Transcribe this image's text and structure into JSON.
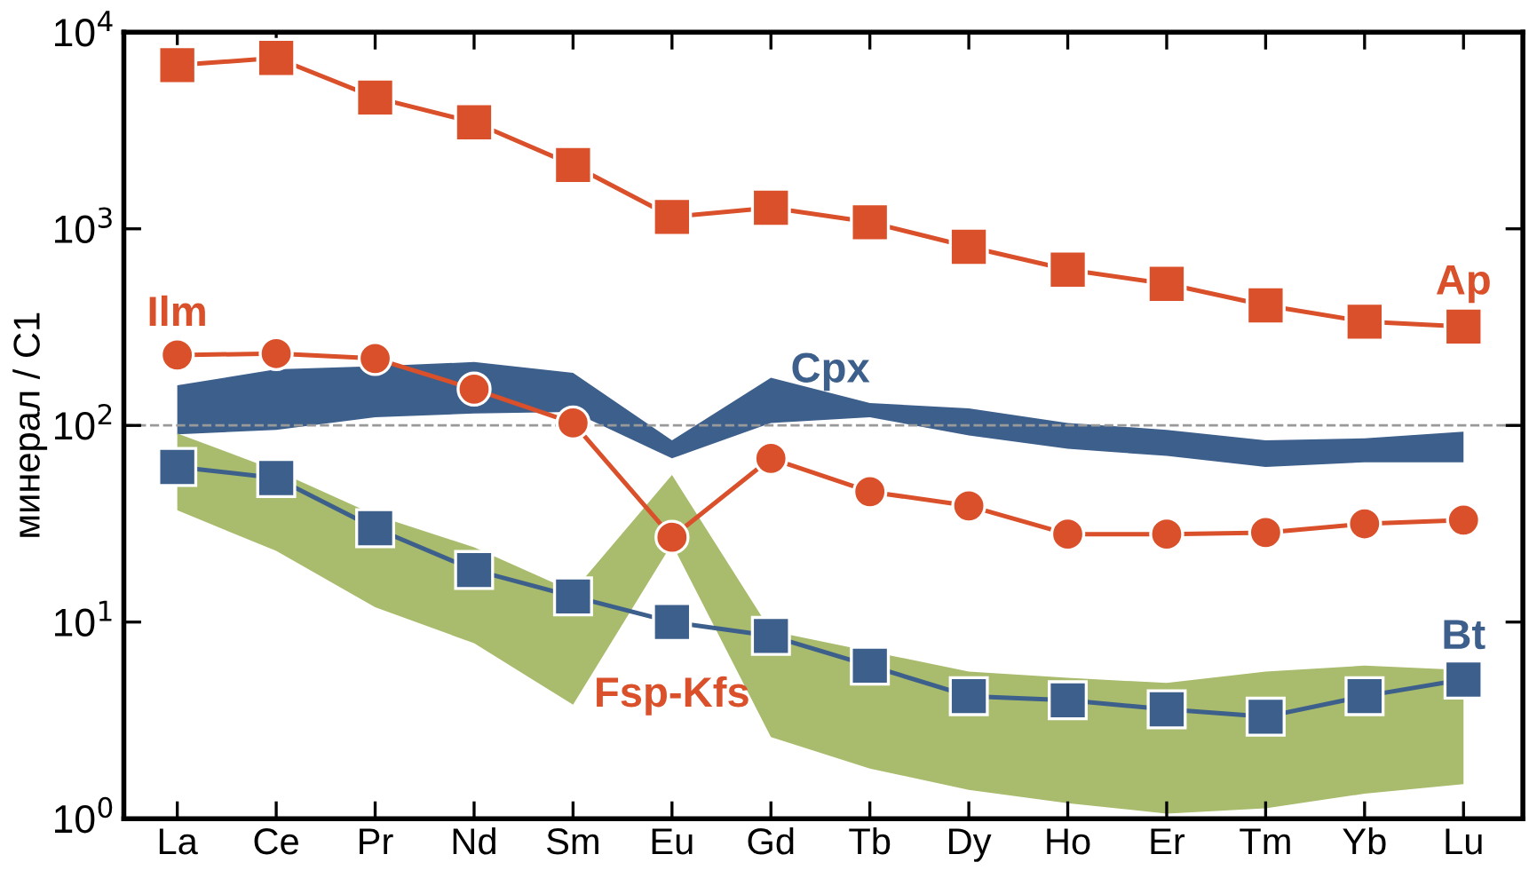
{
  "chart_data": {
    "type": "line",
    "ylabel": "минерал / C1",
    "categories": [
      "La",
      "Ce",
      "Pr",
      "Nd",
      "Sm",
      "Eu",
      "Gd",
      "Tb",
      "Dy",
      "Ho",
      "Er",
      "Tm",
      "Yb",
      "Lu"
    ],
    "log": "y",
    "ylim": [
      1,
      10000
    ],
    "yticks": [
      {
        "value": 1,
        "label": "10$^{0}$"
      },
      {
        "value": 10,
        "label": "10$^{1}$"
      },
      {
        "value": 100,
        "label": "10$^{2}$"
      },
      {
        "value": 1000,
        "label": "10$^{3}$"
      },
      {
        "value": 10000,
        "label": "10$^{4}$"
      }
    ],
    "grid": false,
    "legend": false,
    "annotations": [
      "Fsp-Kfs"
    ],
    "ref_lines": [
      {
        "axis": "y",
        "value": 100,
        "color": "#999999",
        "line_style": "dashed"
      }
    ],
    "series": [
      {
        "name": "Cpx",
        "type": "line",
        "marker": "none",
        "color": "#3d5f8c",
        "values": [
          null,
          null,
          null,
          null,
          null,
          null,
          null,
          null,
          null,
          null,
          null,
          null,
          null,
          null
        ],
        "upper": [
          160,
          193,
          200,
          210,
          185,
          84,
          175,
          130,
          122,
          103,
          95,
          84,
          86,
          93
        ],
        "lower": [
          90,
          95,
          110,
          115,
          117,
          68,
          103,
          110,
          89,
          76,
          70,
          61.5,
          65,
          65
        ]
      },
      {
        "type": "line",
        "marker": "none",
        "color": "#a9bb6c",
        "values": [
          null,
          null,
          null,
          null,
          null,
          null,
          null,
          null,
          null,
          null,
          null,
          null,
          null,
          null
        ],
        "upper": [
          91,
          59,
          35,
          24,
          14.3,
          56,
          9,
          7.1,
          5.6,
          5.2,
          4.9,
          5.6,
          6.0,
          5.7
        ],
        "lower": [
          37,
          23,
          11.9,
          7.8,
          3.8,
          25,
          2.6,
          1.8,
          1.4,
          1.2,
          1.06,
          1.13,
          1.34,
          1.5
        ]
      },
      {
        "name": "Ap",
        "marker": "square",
        "color": "#d9502a",
        "values": [
          6800,
          7400,
          4650,
          3480,
          2110,
          1150,
          1280,
          1080,
          810,
          620,
          525,
          408,
          337,
          318
        ]
      },
      {
        "name": "Ilm",
        "marker": "circle",
        "color": "#d9502a",
        "values": [
          228,
          232,
          219,
          153,
          103,
          27,
          68,
          46,
          39,
          28,
          28,
          28.5,
          31.6,
          33
        ]
      },
      {
        "name": "Bt",
        "marker": "square",
        "color": "#3d5f8c",
        "values": [
          61.5,
          54,
          30,
          18.4,
          13.5,
          10,
          8.5,
          6.0,
          4.2,
          4.0,
          3.6,
          3.3,
          4.2,
          5.1
        ]
      }
    ]
  }
}
